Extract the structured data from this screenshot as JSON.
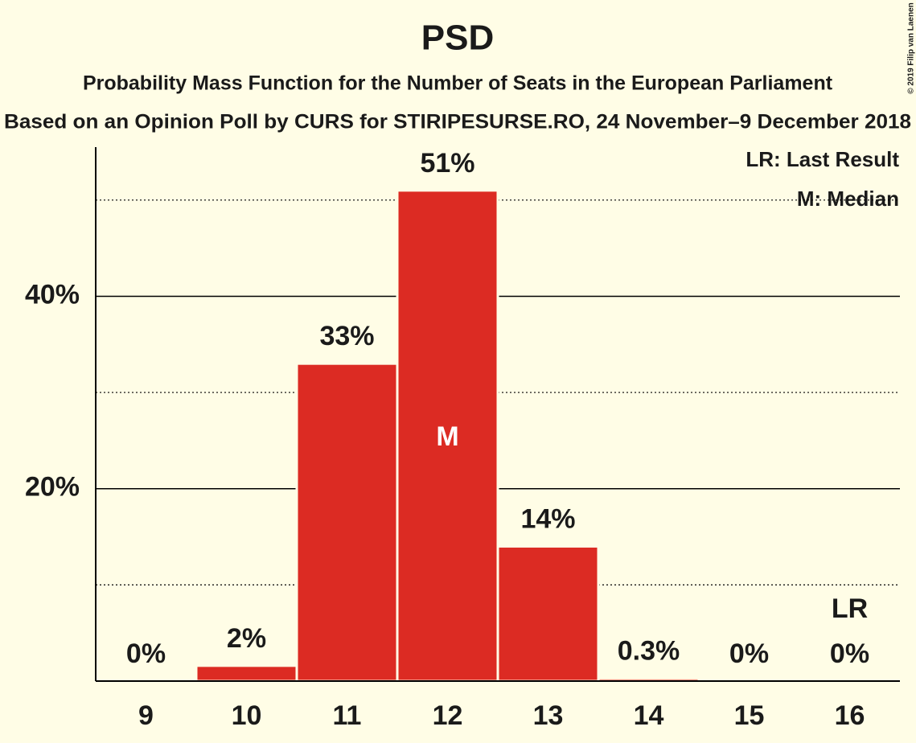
{
  "chart_data": {
    "type": "bar",
    "title": "PSD",
    "subtitles": [
      "Probability Mass Function for the Number of Seats in the European Parliament",
      "Based on an Opinion Poll by CURS for STIRIPESURSE.RO, 24 November–9 December 2018"
    ],
    "categories": [
      "9",
      "10",
      "11",
      "12",
      "13",
      "14",
      "15",
      "16"
    ],
    "values": [
      0,
      1.6,
      33,
      51,
      14,
      0.3,
      0,
      0
    ],
    "value_labels": [
      "0%",
      "2%",
      "33%",
      "51%",
      "14%",
      "0.3%",
      "0%",
      "0%"
    ],
    "color": "#dc2b23",
    "ylim": [
      0,
      55.5
    ],
    "yticks": [
      {
        "value": 20,
        "label": "20%"
      },
      {
        "value": 40,
        "label": "40%"
      }
    ],
    "minor_yticks": [
      10,
      30,
      50
    ],
    "grid": true,
    "median": "12",
    "median_label": "M",
    "last_result": "16",
    "last_result_label": "LR",
    "legend": [
      "LR: Last Result",
      "M: Median"
    ],
    "legend_position": "upper right",
    "copyright": "© 2019 Filip van Laenen"
  }
}
